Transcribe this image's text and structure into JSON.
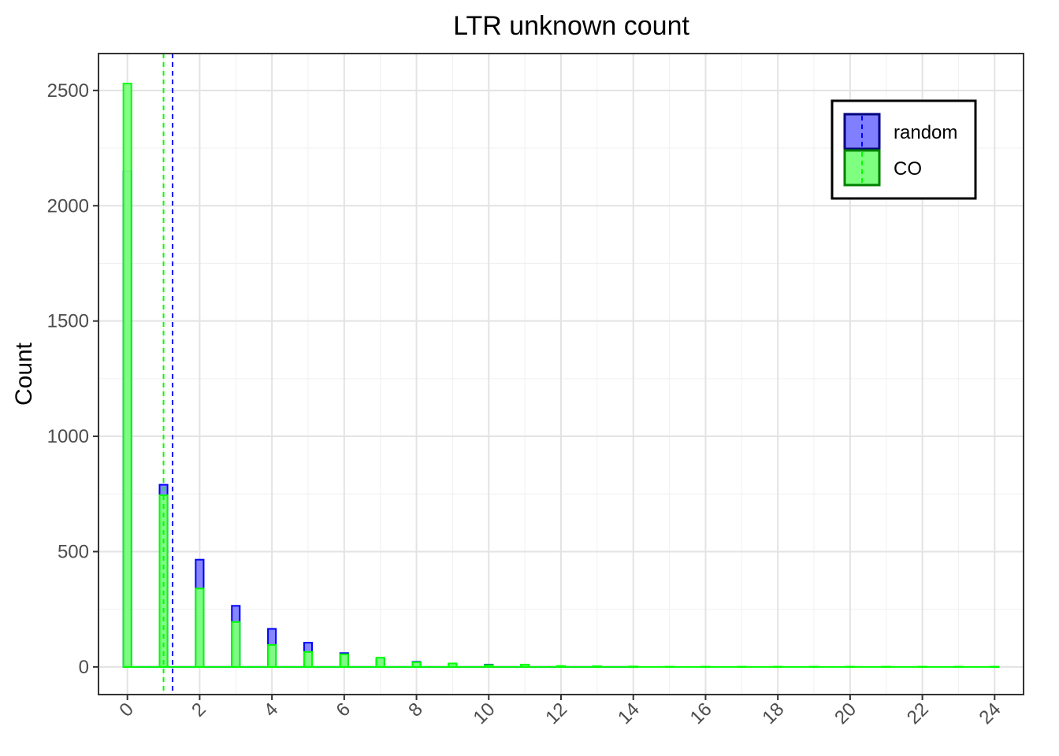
{
  "chart_data": {
    "type": "bar",
    "title": "LTR unknown count",
    "xlabel": "",
    "ylabel": "Count",
    "x_ticks": [
      "0",
      "2",
      "4",
      "6",
      "8",
      "10",
      "12",
      "14",
      "16",
      "18",
      "20",
      "22",
      "24"
    ],
    "y_ticks": [
      "0",
      "500",
      "1000",
      "1500",
      "2000",
      "2500"
    ],
    "xlim": [
      -0.8,
      24.8
    ],
    "ylim": [
      -120,
      2660
    ],
    "grid": true,
    "legend_position": "top-right",
    "series": [
      {
        "name": "random",
        "fill": "#7f7fff",
        "stroke": "#0000ff",
        "x": [
          0,
          1,
          2,
          3,
          4,
          5,
          6,
          7,
          8,
          9,
          10,
          11,
          12,
          13,
          14
        ],
        "values": [
          2150,
          790,
          465,
          265,
          165,
          105,
          60,
          35,
          22,
          12,
          10,
          6,
          3,
          2,
          1
        ],
        "mean": 1.25
      },
      {
        "name": "CO",
        "fill": "#7fff7f",
        "stroke": "#00ff00",
        "x": [
          0,
          1,
          2,
          3,
          4,
          5,
          6,
          7,
          8,
          9,
          10,
          11,
          12,
          13,
          14,
          15,
          16,
          17,
          18,
          19,
          20,
          21,
          22,
          23,
          24
        ],
        "values": [
          2530,
          745,
          340,
          195,
          95,
          65,
          55,
          40,
          20,
          15,
          8,
          10,
          4,
          3,
          2,
          1,
          1,
          1,
          1,
          1,
          1,
          1,
          1,
          1,
          1
        ],
        "mean": 1.0
      }
    ]
  }
}
